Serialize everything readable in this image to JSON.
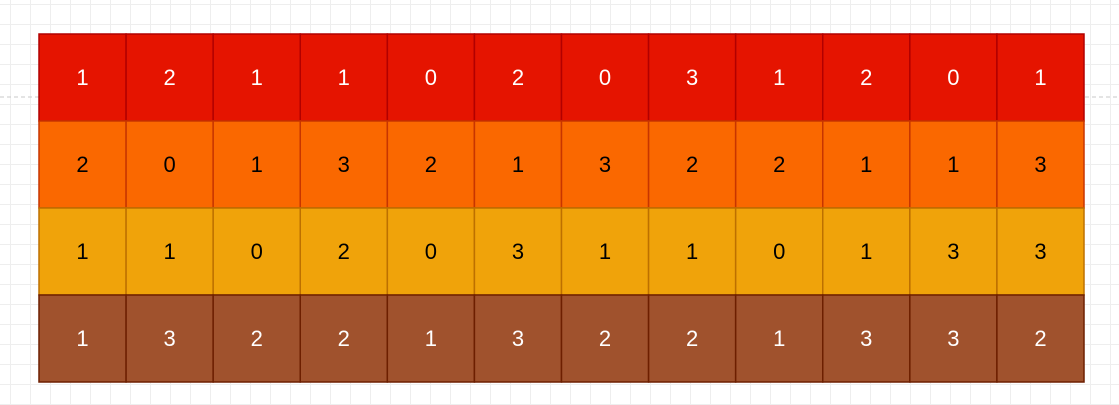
{
  "grid": {
    "rows": [
      [
        1,
        2,
        1,
        1,
        0,
        2,
        0,
        3,
        1,
        2,
        0,
        1
      ],
      [
        2,
        0,
        1,
        3,
        2,
        1,
        3,
        2,
        2,
        1,
        1,
        3
      ],
      [
        1,
        1,
        0,
        2,
        0,
        3,
        1,
        1,
        0,
        1,
        3,
        3
      ],
      [
        1,
        3,
        2,
        2,
        1,
        3,
        2,
        2,
        1,
        3,
        3,
        2
      ]
    ]
  }
}
